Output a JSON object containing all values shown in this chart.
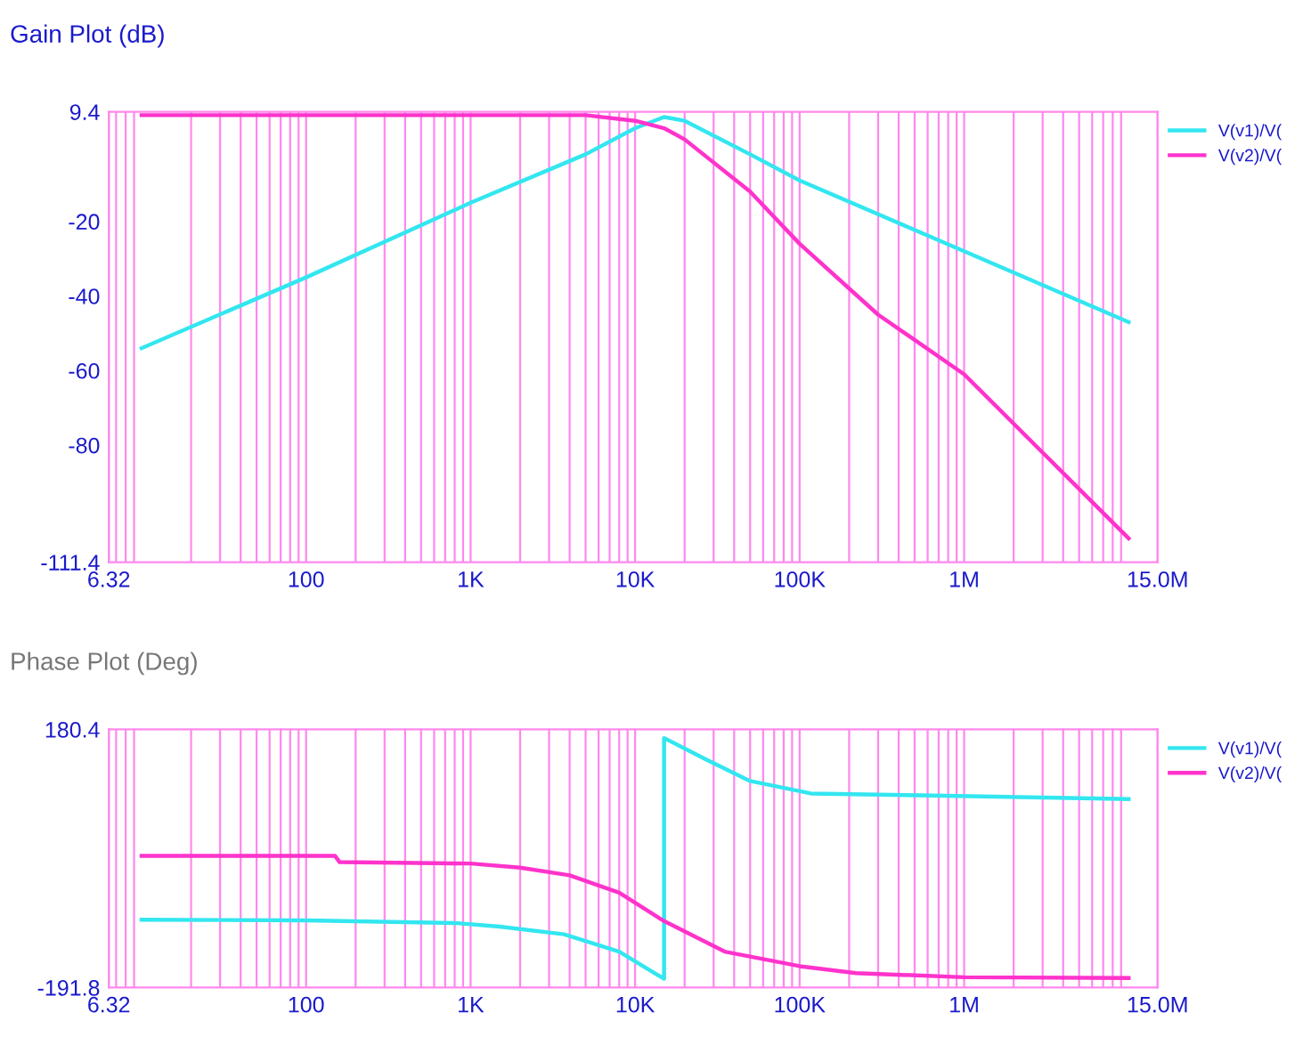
{
  "chart_data": [
    {
      "type": "line",
      "title": "Gain Plot (dB)",
      "log": "x",
      "grid": "x",
      "legend": "right",
      "marker": "none",
      "line_style": "solid",
      "xlim": [
        6.32,
        15000000
      ],
      "xticks": [
        6.32,
        100,
        {
          "value": 1000,
          "label": "1K"
        },
        {
          "value": 10000,
          "label": "10K"
        },
        {
          "value": 100000,
          "label": "100K"
        },
        {
          "value": 1000000,
          "label": "1M"
        },
        {
          "value": 15000000,
          "label": "15.0M"
        }
      ],
      "ylim": [
        -111.4,
        9.4
      ],
      "yticks": [
        9.4,
        -20,
        -40,
        -60,
        -80,
        -111.4
      ],
      "series": [
        {
          "name": "V(v1)/V(",
          "color": "#33e6f0",
          "x": [
            10,
            100,
            1000,
            5000,
            10000,
            15000,
            20000,
            50000,
            100000,
            1000000,
            10000000
          ],
          "values": [
            -54,
            -35,
            -15,
            -2,
            5,
            8,
            7,
            -2,
            -9,
            -28,
            -47
          ]
        },
        {
          "name": "V(v2)/V(",
          "color": "#ff33cc",
          "x": [
            10,
            100,
            1000,
            5000,
            10000,
            15000,
            20000,
            50000,
            100000,
            300000,
            1000000,
            3000000,
            10000000
          ],
          "values": [
            8.5,
            8.5,
            8.5,
            8.5,
            7,
            5,
            2,
            -12,
            -26,
            -45,
            -61,
            -82,
            -105
          ]
        }
      ]
    },
    {
      "type": "line",
      "title": "Phase Plot (Deg)",
      "log": "x",
      "grid": "x",
      "legend": "right",
      "marker": "none",
      "line_style": "solid",
      "xlim": [
        6.32,
        15000000
      ],
      "xticks": [
        6.32,
        100,
        {
          "value": 1000,
          "label": "1K"
        },
        {
          "value": 10000,
          "label": "10K"
        },
        {
          "value": 100000,
          "label": "100K"
        },
        {
          "value": 1000000,
          "label": "1M"
        },
        {
          "value": 15000000,
          "label": "15.0M"
        }
      ],
      "ylim": [
        -191.8,
        180.4
      ],
      "yticks": [
        180.4,
        -191.8
      ],
      "series": [
        {
          "name": "V(v1)/V(",
          "color": "#33e6f0",
          "x": [
            10,
            100,
            830,
            1500,
            3700,
            8000,
            14000,
            15000,
            15000,
            27000,
            50000,
            117000,
            650000,
            10000000
          ],
          "values": [
            -94,
            -95,
            -99,
            -104,
            -115,
            -140,
            -175,
            -179,
            168,
            137,
            106,
            88,
            85,
            80
          ]
        },
        {
          "name": "V(v2)/V(",
          "color": "#ff33cc",
          "x": [
            10,
            150,
            160,
            1000,
            2000,
            4000,
            8000,
            15000,
            35000,
            100000,
            220000,
            1000000,
            10000000
          ],
          "values": [
            -2,
            -2,
            -11,
            -13,
            -19,
            -30,
            -55,
            -96,
            -140,
            -161,
            -171,
            -177,
            -178
          ]
        }
      ]
    }
  ]
}
